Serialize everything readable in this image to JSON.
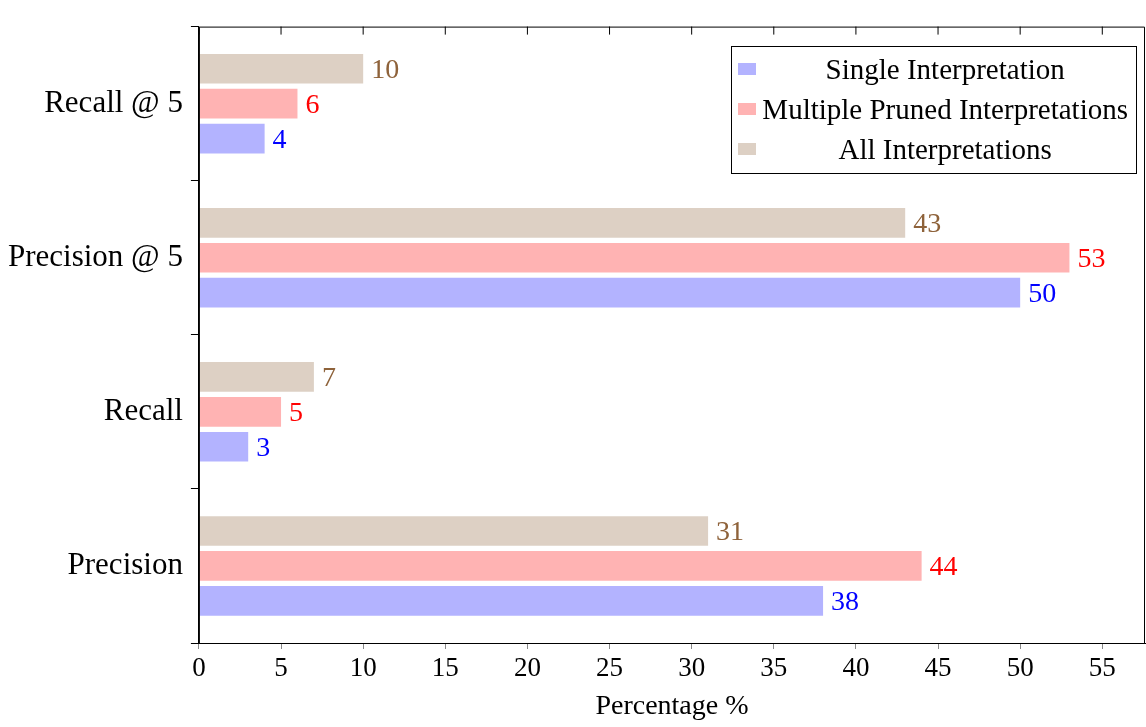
{
  "chart_data": {
    "type": "bar",
    "orientation": "horizontal",
    "xlabel": "Percentage %",
    "categories": [
      "Recall @ 5",
      "Precision @ 5",
      "Recall",
      "Precision"
    ],
    "series": [
      {
        "name": "Single Interpretation",
        "color": "#b3b3ff",
        "values": [
          4,
          50,
          3,
          38
        ]
      },
      {
        "name": "Multiple Pruned Interpretations",
        "color": "#ffb3b3",
        "values": [
          6,
          53,
          5,
          44
        ]
      },
      {
        "name": "All Interpretations",
        "color": "#ddd0c4",
        "values": [
          10,
          43,
          7,
          31
        ]
      }
    ],
    "xlim": [
      0,
      57.6
    ],
    "xticks": [
      0,
      5,
      10,
      15,
      20,
      25,
      30,
      35,
      40,
      45,
      50,
      55
    ],
    "data_labels": true,
    "legend": "top right",
    "grid": false
  }
}
